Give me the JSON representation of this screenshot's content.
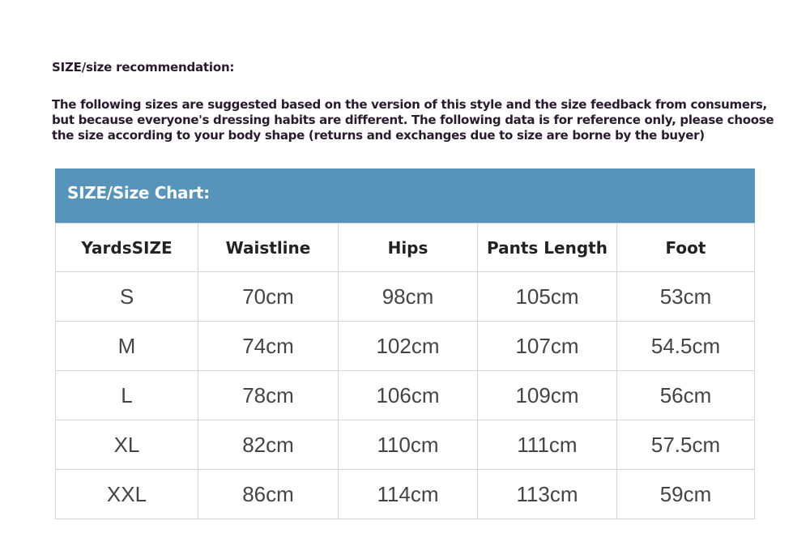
{
  "heading": "SIZE/size recommendation:",
  "intro": "The following sizes are suggested based on the version of this style and the size feedback from consumers, but because everyone's dressing habits are different. The following data is for reference only, please choose the size according to your body shape (returns and exchanges due to size are borne by the buyer)",
  "chart_title": "SIZE/Size Chart:",
  "colors": {
    "header_band": "#5694bc",
    "text": "#2a1a2e"
  },
  "table": {
    "headers": [
      "YardsSIZE",
      "Waistline",
      "Hips",
      "Pants Length",
      "Foot"
    ],
    "rows": [
      [
        "S",
        "70cm",
        "98cm",
        "105cm",
        "53cm"
      ],
      [
        "M",
        "74cm",
        "102cm",
        "107cm",
        "54.5cm"
      ],
      [
        "L",
        "78cm",
        "106cm",
        "109cm",
        "56cm"
      ],
      [
        "XL",
        "82cm",
        "110cm",
        "111cm",
        "57.5cm"
      ],
      [
        "XXL",
        "86cm",
        "114cm",
        "113cm",
        "59cm"
      ]
    ]
  }
}
